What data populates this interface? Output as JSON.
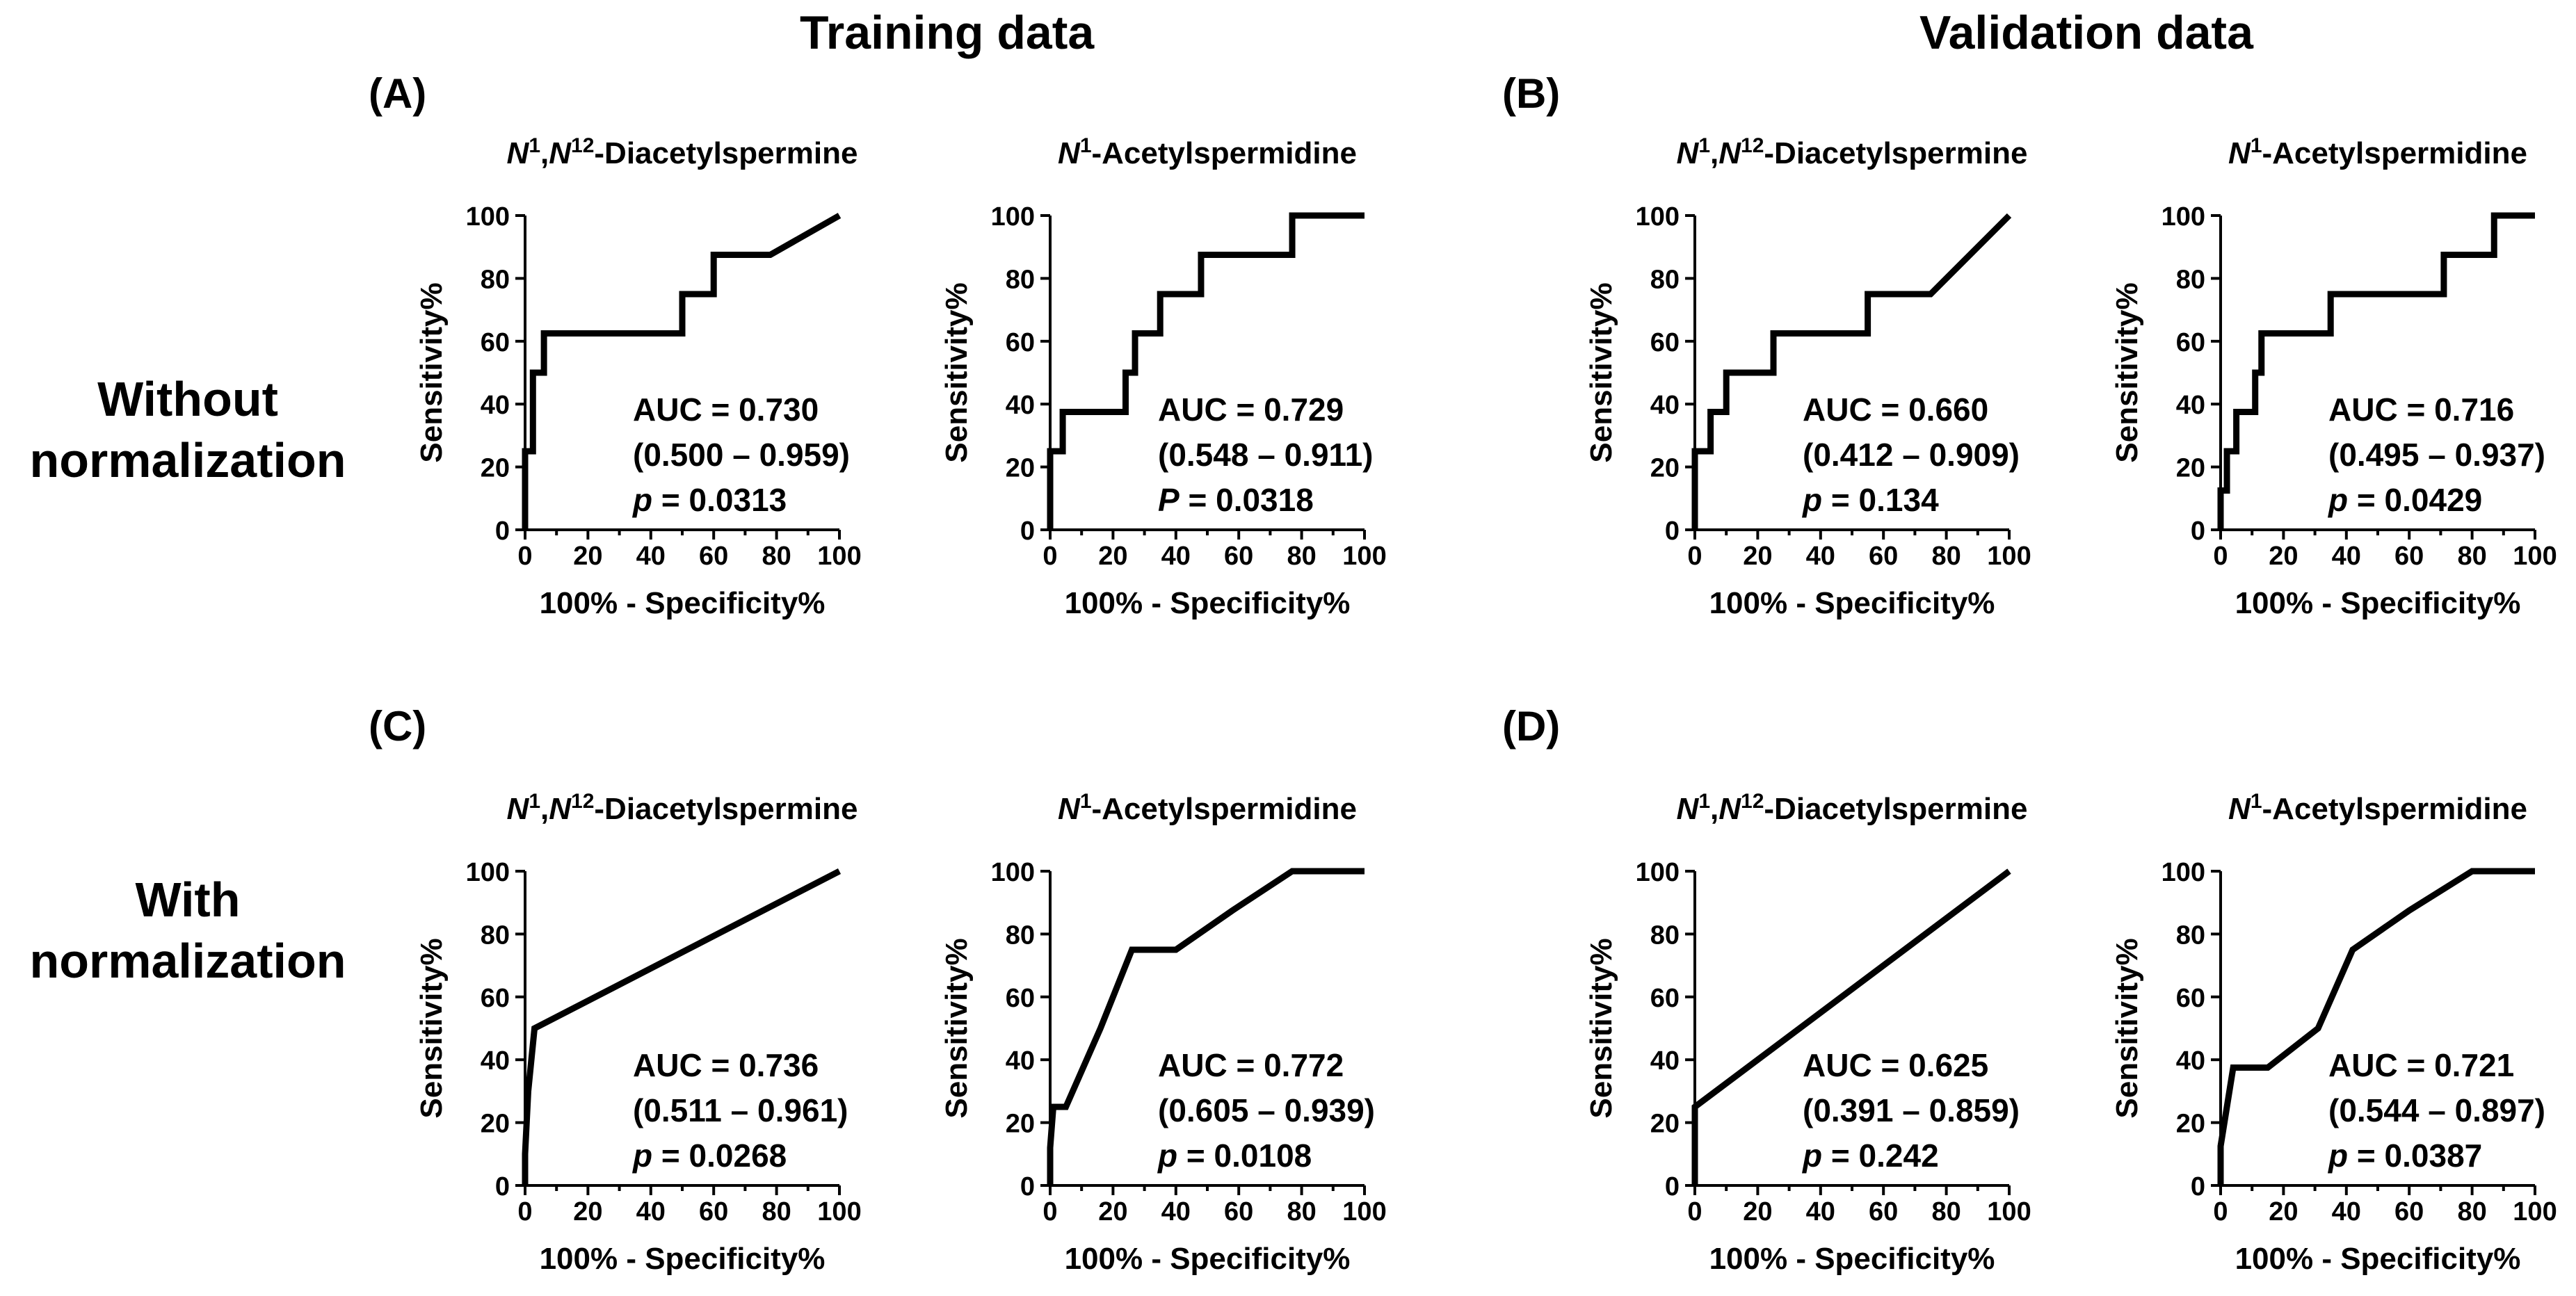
{
  "headers": {
    "training": "Training data",
    "validation": "Validation data"
  },
  "row_labels": {
    "without": [
      "Without",
      "normalization"
    ],
    "with": [
      "With",
      "normalization"
    ]
  },
  "panel_labels": {
    "A": "(A)",
    "B": "(B)",
    "C": "(C)",
    "D": "(D)"
  },
  "chart_data": [
    {
      "id": "A1",
      "type": "line",
      "panel": "(A)",
      "title": "N1,N12-Diacetylspermine",
      "xlabel": "100% - Specificity%",
      "ylabel": "Sensitivity%",
      "xlim": [
        0,
        100
      ],
      "ylim": [
        0,
        100
      ],
      "xticks": [
        0,
        10,
        20,
        30,
        40,
        50,
        60,
        70,
        80,
        90,
        100
      ],
      "yticks": [
        0,
        20,
        40,
        60,
        80,
        100
      ],
      "auc": "AUC = 0.730",
      "ci": "(0.500 – 0.959)",
      "p_label": "p",
      "p_value": " = 0.0313",
      "x": [
        0,
        0,
        2.5,
        2.5,
        6,
        6,
        10,
        10,
        50,
        50,
        60,
        60,
        78,
        100
      ],
      "y": [
        0,
        25,
        25,
        50,
        50,
        62.5,
        62.5,
        62.5,
        62.5,
        75,
        75,
        87.5,
        87.5,
        100
      ]
    },
    {
      "id": "A2",
      "type": "line",
      "panel": "(A)",
      "title": "N1-Acetylspermidine",
      "xlabel": "100% - Specificity%",
      "ylabel": "Sensitivity%",
      "xlim": [
        0,
        100
      ],
      "ylim": [
        0,
        100
      ],
      "xticks": [
        0,
        10,
        20,
        30,
        40,
        50,
        60,
        70,
        80,
        90,
        100
      ],
      "yticks": [
        0,
        20,
        40,
        60,
        80,
        100
      ],
      "auc": "AUC = 0.729",
      "ci": "(0.548 – 0.911)",
      "p_label": "P",
      "p_value": " = 0.0318",
      "x": [
        0,
        0,
        4,
        4,
        24,
        24,
        27,
        27,
        35,
        35,
        48,
        48,
        77,
        77,
        100
      ],
      "y": [
        0,
        25,
        25,
        37.5,
        37.5,
        50,
        50,
        62.5,
        62.5,
        75,
        75,
        87.5,
        87.5,
        100,
        100
      ]
    },
    {
      "id": "B1",
      "type": "line",
      "panel": "(B)",
      "title": "N1,N12-Diacetylspermine",
      "xlabel": "100% - Specificity%",
      "ylabel": "Sensitivity%",
      "xlim": [
        0,
        100
      ],
      "ylim": [
        0,
        100
      ],
      "xticks": [
        0,
        10,
        20,
        30,
        40,
        50,
        60,
        70,
        80,
        90,
        100
      ],
      "yticks": [
        0,
        20,
        40,
        60,
        80,
        100
      ],
      "auc": "AUC = 0.660",
      "ci": "(0.412 – 0.909)",
      "p_label": "p",
      "p_value": " = 0.134",
      "x": [
        0,
        0,
        5,
        5,
        10,
        10,
        25,
        25,
        55,
        55,
        75,
        100
      ],
      "y": [
        0,
        25,
        25,
        37.5,
        37.5,
        50,
        50,
        62.5,
        62.5,
        75,
        75,
        100
      ]
    },
    {
      "id": "B2",
      "type": "line",
      "panel": "(B)",
      "title": "N1-Acetylspermidine",
      "xlabel": "100% - Specificity%",
      "ylabel": "Sensitivity%",
      "xlim": [
        0,
        100
      ],
      "ylim": [
        0,
        100
      ],
      "xticks": [
        0,
        10,
        20,
        30,
        40,
        50,
        60,
        70,
        80,
        90,
        100
      ],
      "yticks": [
        0,
        20,
        40,
        60,
        80,
        100
      ],
      "auc": "AUC = 0.716",
      "ci": "(0.495 – 0.937)",
      "p_label": "p",
      "p_value": " = 0.0429",
      "x": [
        0,
        0,
        2,
        2,
        5,
        5,
        9,
        9,
        11,
        11,
        13,
        13,
        35,
        35,
        71,
        71,
        87,
        87,
        100
      ],
      "y": [
        0,
        12.5,
        12.5,
        25,
        25,
        37.5,
        37.5,
        37.5,
        37.5,
        50,
        50,
        62.5,
        62.5,
        75,
        75,
        87.5,
        87.5,
        100,
        100
      ]
    },
    {
      "id": "C1",
      "type": "line",
      "panel": "(C)",
      "title": "N1,N12-Diacetylspermine",
      "xlabel": "100% - Specificity%",
      "ylabel": "Sensitivity%",
      "xlim": [
        0,
        100
      ],
      "ylim": [
        0,
        100
      ],
      "xticks": [
        0,
        10,
        20,
        30,
        40,
        50,
        60,
        70,
        80,
        90,
        100
      ],
      "yticks": [
        0,
        20,
        40,
        60,
        80,
        100
      ],
      "auc": "AUC = 0.736",
      "ci": "(0.511 – 0.961)",
      "p_label": "p",
      "p_value": " = 0.0268",
      "x": [
        0,
        0,
        1,
        3,
        100
      ],
      "y": [
        0,
        10,
        30,
        50,
        100
      ]
    },
    {
      "id": "C2",
      "type": "line",
      "panel": "(C)",
      "title": "N1-Acetylspermidine",
      "xlabel": "100% - Specificity%",
      "ylabel": "Sensitivity%",
      "xlim": [
        0,
        100
      ],
      "ylim": [
        0,
        100
      ],
      "xticks": [
        0,
        10,
        20,
        30,
        40,
        50,
        60,
        70,
        80,
        90,
        100
      ],
      "yticks": [
        0,
        20,
        40,
        60,
        80,
        100
      ],
      "auc": "AUC = 0.772",
      "ci": "(0.605 – 0.939)",
      "p_label": "p",
      "p_value": " = 0.0108",
      "x": [
        0,
        0,
        1,
        5,
        16,
        26,
        40,
        58,
        77,
        100
      ],
      "y": [
        0,
        12,
        25,
        25,
        50,
        75,
        75,
        87.5,
        100,
        100
      ]
    },
    {
      "id": "D1",
      "type": "line",
      "panel": "(D)",
      "title": "N1,N12-Diacetylspermine",
      "xlabel": "100% - Specificity%",
      "ylabel": "Sensitivity%",
      "xlim": [
        0,
        100
      ],
      "ylim": [
        0,
        100
      ],
      "xticks": [
        0,
        10,
        20,
        30,
        40,
        50,
        60,
        70,
        80,
        90,
        100
      ],
      "yticks": [
        0,
        20,
        40,
        60,
        80,
        100
      ],
      "auc": "AUC = 0.625",
      "ci": "(0.391 – 0.859)",
      "p_label": "p",
      "p_value": " = 0.242",
      "x": [
        0,
        0,
        100
      ],
      "y": [
        0,
        25,
        100
      ]
    },
    {
      "id": "D2",
      "type": "line",
      "panel": "(D)",
      "title": "N1-Acetylspermidine",
      "xlabel": "100% - Specificity%",
      "ylabel": "Sensitivity%",
      "xlim": [
        0,
        100
      ],
      "ylim": [
        0,
        100
      ],
      "xticks": [
        0,
        10,
        20,
        30,
        40,
        50,
        60,
        70,
        80,
        90,
        100
      ],
      "yticks": [
        0,
        20,
        40,
        60,
        80,
        100
      ],
      "auc": "AUC = 0.721",
      "ci": "(0.544 – 0.897)",
      "p_label": "p",
      "p_value": " = 0.0387",
      "x": [
        0,
        0,
        2,
        4,
        15,
        31,
        42,
        60,
        80,
        100
      ],
      "y": [
        0,
        12.5,
        25,
        37.5,
        37.5,
        50,
        75,
        87.5,
        100,
        100
      ]
    }
  ]
}
